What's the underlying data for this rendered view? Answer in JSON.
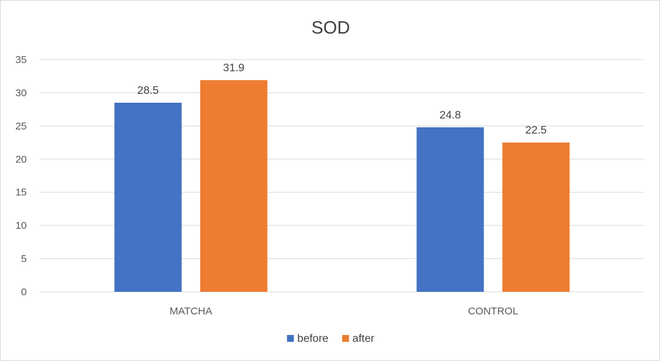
{
  "chart_data": {
    "type": "bar",
    "title": "SOD",
    "categories": [
      "MATCHA",
      "CONTROL"
    ],
    "series": [
      {
        "name": "before",
        "values": [
          28.5,
          24.8
        ],
        "color": "#4472C4"
      },
      {
        "name": "after",
        "values": [
          31.9,
          22.5
        ],
        "color": "#ED7D31"
      }
    ],
    "xlabel": "",
    "ylabel": "",
    "ylim": [
      0,
      35
    ],
    "yticks": [
      0,
      5,
      10,
      15,
      20,
      25,
      30,
      35
    ],
    "grid": true,
    "legend_position": "bottom",
    "data_labels": true,
    "gridline_color": "#d9d9d9",
    "axis_color": "#d9d9d9"
  }
}
